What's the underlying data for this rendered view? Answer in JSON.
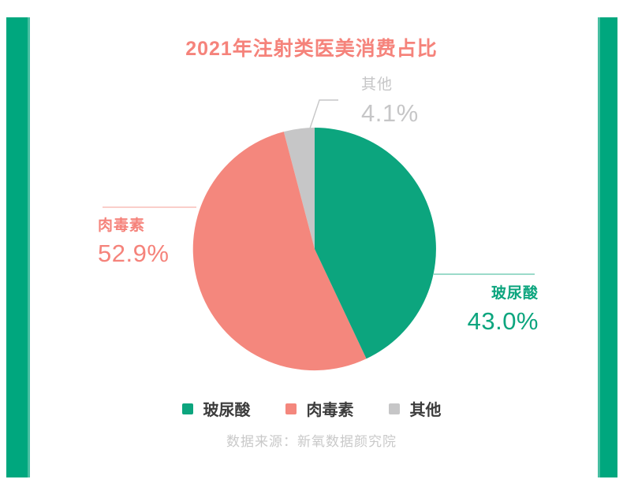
{
  "title": "2021年注射类医美消费占比",
  "chart_data": {
    "type": "pie",
    "title": "2021年注射类医美消费占比",
    "labels": [
      "玻尿酸",
      "肉毒素",
      "其他"
    ],
    "keys": [
      "hyaluronic",
      "botox",
      "other"
    ],
    "values": [
      43.0,
      52.9,
      4.1
    ],
    "unit": "%",
    "colors": [
      "#0CA57E",
      "#F4877D",
      "#C6C6C7"
    ],
    "start_angle": "top",
    "direction": "clockwise",
    "legend_position": "bottom",
    "source": "数据来源：新氧数据颜究院"
  },
  "callouts": {
    "hyaluronic": {
      "label": "玻尿酸",
      "value": "43.0%"
    },
    "botox": {
      "label": "肉毒素",
      "value": "52.9%"
    },
    "other": {
      "label": "其他",
      "value": "4.1%"
    }
  },
  "legend": {
    "items": [
      {
        "label": "玻尿酸"
      },
      {
        "label": "肉毒素"
      },
      {
        "label": "其他"
      }
    ]
  },
  "source_text": "数据来源：新氧数据颜究院",
  "theme": {
    "accent_bar_color": "#00A77E",
    "title_color": "#F5837B",
    "legend_text_color": "#3C3C3C",
    "muted_text_color": "#C9C9C9"
  }
}
